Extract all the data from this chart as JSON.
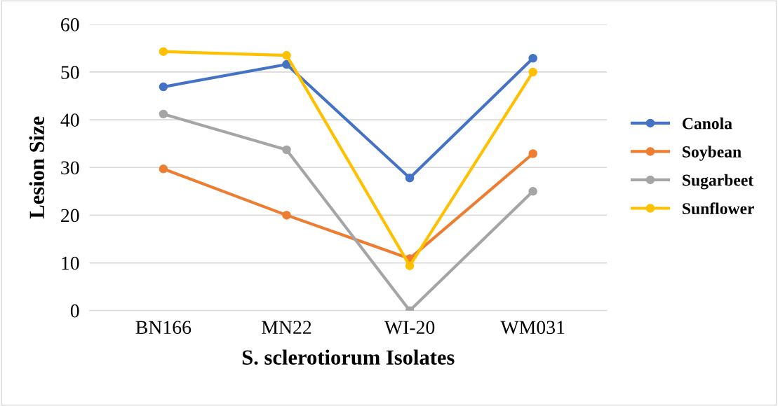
{
  "chart_data": {
    "type": "line",
    "xlabel": "S. sclerotiorum Isolates",
    "ylabel": "Lesion Size",
    "categories": [
      "BN166",
      "MN22",
      "WI-20",
      "WM031"
    ],
    "series": [
      {
        "name": "Canola",
        "color": "#4472c4",
        "values": [
          46.9,
          51.6,
          27.8,
          52.9
        ]
      },
      {
        "name": "Soybean",
        "color": "#ed7d31",
        "values": [
          29.7,
          20.0,
          10.9,
          32.9
        ]
      },
      {
        "name": "Sugarbeet",
        "color": "#a5a5a5",
        "values": [
          41.2,
          33.7,
          0,
          25.0
        ]
      },
      {
        "name": "Sunflower",
        "color": "#ffc000",
        "values": [
          54.3,
          53.5,
          9.4,
          50.0
        ]
      }
    ],
    "ylim": [
      0,
      60
    ],
    "yticks": [
      0,
      10,
      20,
      30,
      40,
      50,
      60
    ],
    "grid": "y",
    "legend": "right",
    "marker": "circle",
    "line_style": "solid"
  }
}
